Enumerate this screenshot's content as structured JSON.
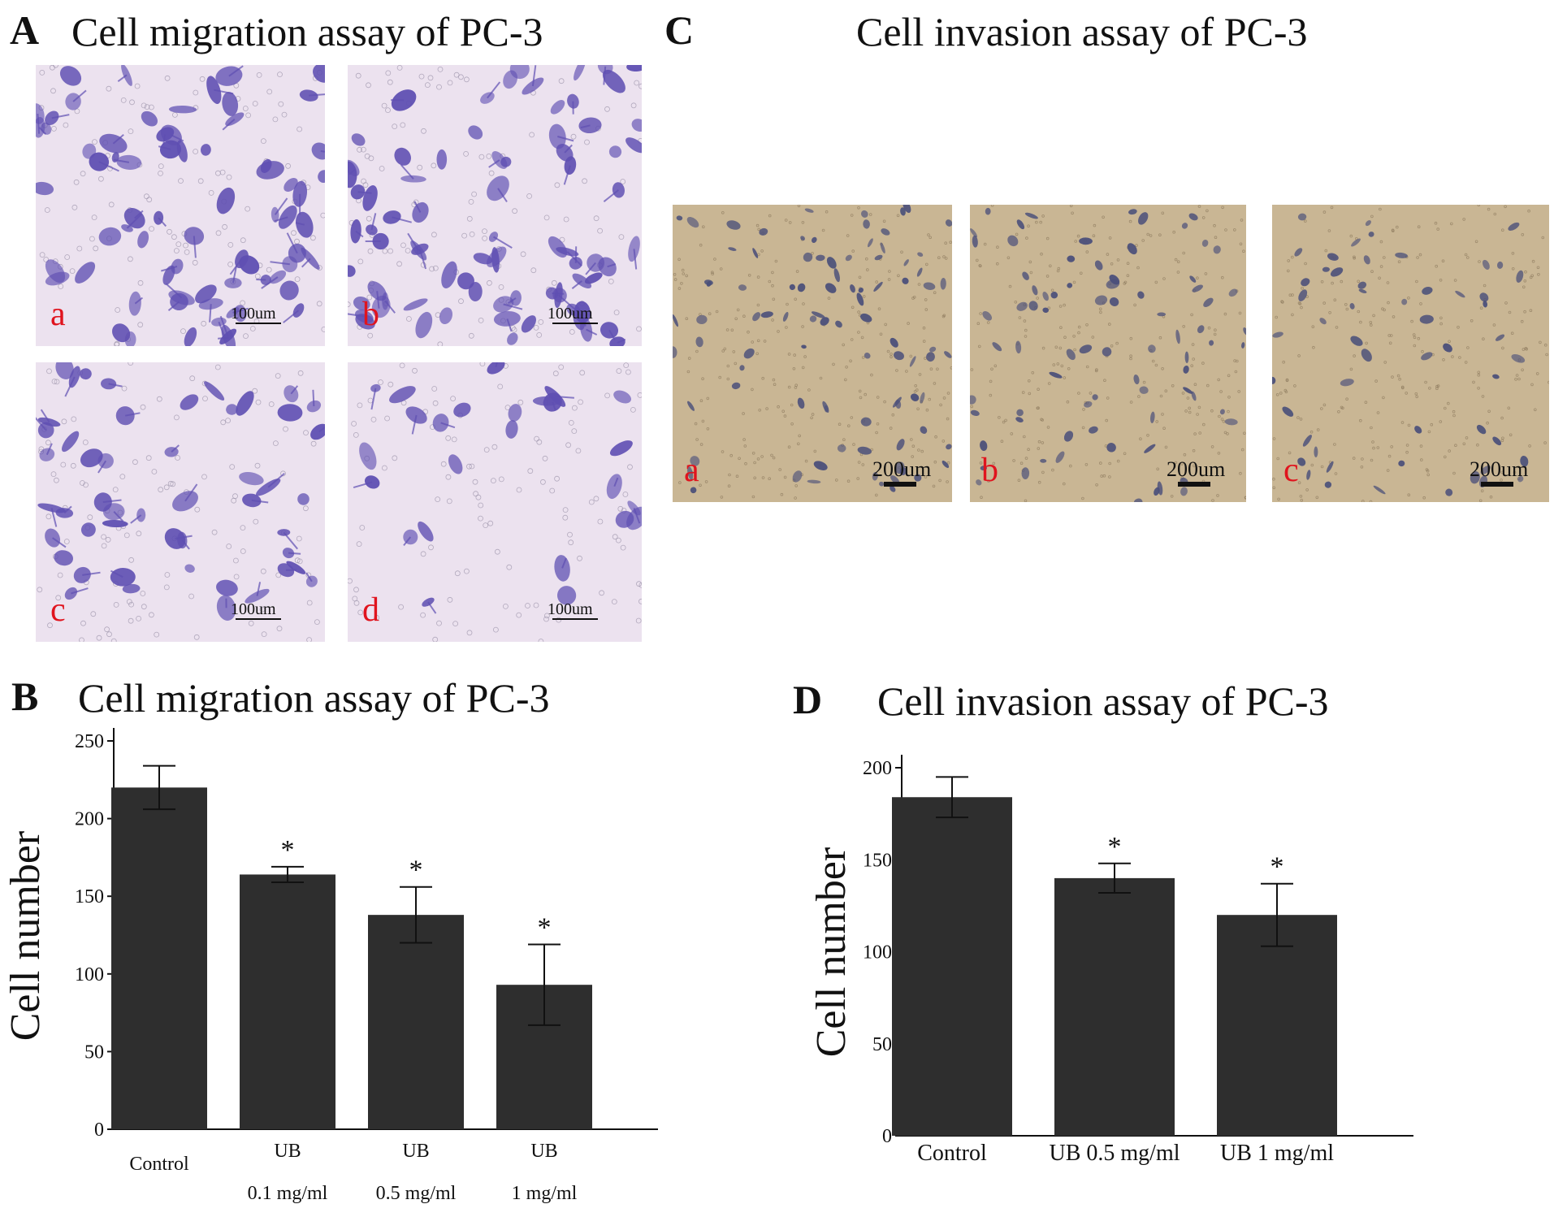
{
  "panels": {
    "A": {
      "letter": "A",
      "title": "Cell migration assay of PC-3",
      "images": [
        {
          "label": "a",
          "scale": "100um"
        },
        {
          "label": "b",
          "scale": "100um"
        },
        {
          "label": "c",
          "scale": "100um"
        },
        {
          "label": "d",
          "scale": "100um"
        }
      ]
    },
    "B": {
      "letter": "B",
      "title": "Cell migration assay of PC-3"
    },
    "C": {
      "letter": "C",
      "title": "Cell invasion assay of PC-3",
      "images": [
        {
          "label": "a",
          "scale": "200um"
        },
        {
          "label": "b",
          "scale": "200um"
        },
        {
          "label": "c",
          "scale": "200um"
        }
      ]
    },
    "D": {
      "letter": "D",
      "title": "Cell invasion assay of PC-3"
    }
  },
  "colors": {
    "bar": "#2e2e2e",
    "label_red": "#e0141e",
    "migration_bg": "#ece2ef",
    "migration_cell": "#5f4fb2",
    "invasion_bg": "#c9b694",
    "invasion_cell": "#4a4f7a"
  },
  "chart_data": [
    {
      "type": "bar",
      "title": "Cell migration assay of PC-3",
      "xlabel": "",
      "ylabel": "Cell number",
      "ylim": [
        0,
        250
      ],
      "yticks": [
        "0",
        "50",
        "100",
        "150",
        "200",
        "250"
      ],
      "categories": [
        {
          "line1": "Control",
          "line2": ""
        },
        {
          "line1": "UB",
          "line2": "0.1 mg/ml"
        },
        {
          "line1": "UB",
          "line2": "0.5 mg/ml"
        },
        {
          "line1": "UB",
          "line2": "1 mg/ml"
        }
      ],
      "values": [
        220,
        164,
        138,
        93
      ],
      "errors": [
        14,
        5,
        18,
        26
      ],
      "significance": [
        "",
        "*",
        "*",
        "*"
      ],
      "grid": false,
      "legend": "none"
    },
    {
      "type": "bar",
      "title": "Cell invasion assay of PC-3",
      "xlabel": "",
      "ylabel": "Cell number",
      "ylim": [
        0,
        200
      ],
      "yticks": [
        "0",
        "50",
        "100",
        "150",
        "200"
      ],
      "categories": [
        {
          "line1": "Control",
          "line2": ""
        },
        {
          "line1": "UB  0.5 mg/ml",
          "line2": ""
        },
        {
          "line1": "UB  1 mg/ml",
          "line2": ""
        }
      ],
      "values": [
        184,
        140,
        120
      ],
      "errors": [
        11,
        8,
        17
      ],
      "significance": [
        "",
        "*",
        "*"
      ],
      "grid": false,
      "legend": "none"
    }
  ]
}
